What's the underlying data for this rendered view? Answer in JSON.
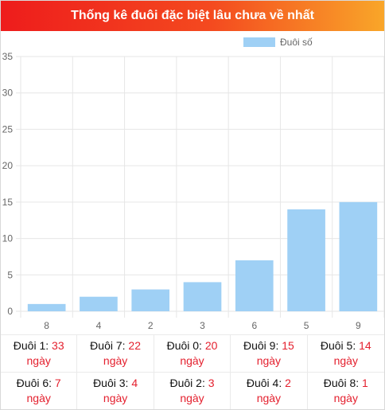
{
  "header": {
    "title": "Thống kê đuôi đặc biệt lâu chưa về nhất"
  },
  "chart_data": {
    "type": "bar",
    "categories": [
      "8",
      "4",
      "2",
      "3",
      "6",
      "5",
      "9"
    ],
    "series": [
      {
        "name": "Đuôi số",
        "values": [
          1,
          2,
          3,
          4,
          7,
          14,
          15
        ],
        "color": "#9fd0f5"
      }
    ],
    "ylim": [
      0,
      35
    ],
    "yticks": [
      0,
      5,
      10,
      15,
      20,
      25,
      30,
      35
    ],
    "grid": true,
    "legend_position": "top-right"
  },
  "stats": [
    {
      "label": "Đuôi 1: ",
      "value": "33",
      "unit": "ngày"
    },
    {
      "label": "Đuôi 7: ",
      "value": "22",
      "unit": "ngày"
    },
    {
      "label": "Đuôi 0: ",
      "value": "20",
      "unit": "ngày"
    },
    {
      "label": "Đuôi 9: ",
      "value": "15",
      "unit": "ngày"
    },
    {
      "label": "Đuôi 5: ",
      "value": "14",
      "unit": "ngày"
    },
    {
      "label": "Đuôi 6: ",
      "value": "7",
      "unit": "ngày"
    },
    {
      "label": "Đuôi 3: ",
      "value": "4",
      "unit": "ngày"
    },
    {
      "label": "Đuôi 2: ",
      "value": "3",
      "unit": "ngày"
    },
    {
      "label": "Đuôi 4: ",
      "value": "2",
      "unit": "ngày"
    },
    {
      "label": "Đuôi 8: ",
      "value": "1",
      "unit": "ngày"
    }
  ]
}
